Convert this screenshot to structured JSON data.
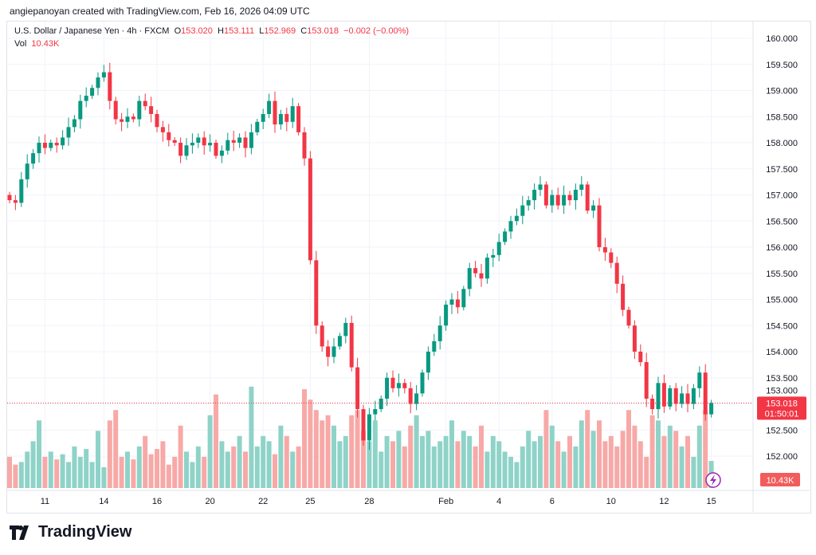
{
  "credit": "angiepanoyan created with TradingView.com, Feb 16, 2026 04:09 UTC",
  "legend": {
    "symbol": "U.S. Dollar / Japanese Yen · 4h · FXCM",
    "o_label": "O",
    "o": "153.020",
    "h_label": "H",
    "h": "153.111",
    "l_label": "L",
    "l": "152.969",
    "c_label": "C",
    "c": "153.018",
    "change": "−0.002 (−0.00%)",
    "vol_label": "Vol",
    "vol": "10.43K"
  },
  "price_badge": {
    "price": "153.018",
    "countdown": "01:50:01"
  },
  "volume_badge": "10.43K",
  "logo_text": "TradingView",
  "colors": {
    "up": "#089981",
    "down": "#f23645",
    "up_vol": "#8fd3c8",
    "down_vol": "#f7a9a7"
  },
  "chart_data": {
    "type": "candlestick",
    "title": "U.S. Dollar / Japanese Yen · 4h · FXCM",
    "ylim": [
      151.6,
      160.3
    ],
    "y_ticks": [
      "160.000",
      "159.500",
      "159.000",
      "158.500",
      "158.000",
      "157.500",
      "157.000",
      "156.500",
      "156.000",
      "155.500",
      "155.000",
      "154.500",
      "154.000",
      "153.500",
      "153.000",
      "152.500",
      "152.000"
    ],
    "x_ticks": [
      {
        "label": "11",
        "index": 6
      },
      {
        "label": "14",
        "index": 16
      },
      {
        "label": "16",
        "index": 25
      },
      {
        "label": "20",
        "index": 34
      },
      {
        "label": "22",
        "index": 43
      },
      {
        "label": "25",
        "index": 51
      },
      {
        "label": "28",
        "index": 61
      },
      {
        "label": "Feb",
        "index": 74
      },
      {
        "label": "4",
        "index": 83
      },
      {
        "label": "6",
        "index": 92
      },
      {
        "label": "10",
        "index": 102
      },
      {
        "label": "12",
        "index": 111
      },
      {
        "label": "15",
        "index": 119
      }
    ],
    "first_open": 157.0,
    "close": [
      156.9,
      156.85,
      157.3,
      157.6,
      157.8,
      158.0,
      157.9,
      158.0,
      157.95,
      158.1,
      158.3,
      158.45,
      158.8,
      158.9,
      159.05,
      159.25,
      159.35,
      158.8,
      158.45,
      158.4,
      158.5,
      158.45,
      158.8,
      158.7,
      158.55,
      158.3,
      158.2,
      158.05,
      158.0,
      157.75,
      157.95,
      158.0,
      158.1,
      157.95,
      158.0,
      157.75,
      157.85,
      158.05,
      158.0,
      158.1,
      157.9,
      158.2,
      158.4,
      158.55,
      158.8,
      158.35,
      158.55,
      158.4,
      158.7,
      158.2,
      157.7,
      155.75,
      154.5,
      154.1,
      153.9,
      154.1,
      154.3,
      154.55,
      153.7,
      152.9,
      152.3,
      152.8,
      152.9,
      153.1,
      153.5,
      153.3,
      153.4,
      153.3,
      153.0,
      153.2,
      153.6,
      154.0,
      154.2,
      154.5,
      154.9,
      155.0,
      154.85,
      155.2,
      155.6,
      155.5,
      155.4,
      155.8,
      155.85,
      156.1,
      156.3,
      156.5,
      156.6,
      156.8,
      156.9,
      157.1,
      157.2,
      156.8,
      157.0,
      156.8,
      157.0,
      156.9,
      157.1,
      157.2,
      156.7,
      156.8,
      156.0,
      155.9,
      155.7,
      155.3,
      154.8,
      154.5,
      154.0,
      153.8,
      153.1,
      152.9,
      153.4,
      152.95,
      153.3,
      153.0,
      153.2,
      153.0,
      153.3,
      153.6,
      152.8,
      153.018
    ],
    "volume_k": [
      12,
      9,
      10,
      14,
      18,
      26,
      12,
      14,
      11,
      13,
      10,
      16,
      12,
      15,
      10,
      22,
      8,
      26,
      30,
      12,
      14,
      11,
      16,
      20,
      13,
      15,
      18,
      9,
      12,
      24,
      14,
      10,
      16,
      12,
      28,
      36,
      18,
      14,
      16,
      20,
      14,
      39,
      16,
      20,
      18,
      13,
      24,
      20,
      14,
      16,
      38,
      34,
      30,
      26,
      28,
      24,
      18,
      20,
      28,
      30,
      22,
      18,
      26,
      14,
      20,
      18,
      22,
      16,
      24,
      28,
      20,
      22,
      16,
      18,
      20,
      26,
      18,
      22,
      20,
      16,
      24,
      14,
      20,
      18,
      14,
      12,
      10,
      16,
      22,
      18,
      20,
      30,
      24,
      18,
      14,
      20,
      16,
      26,
      30,
      22,
      26,
      18,
      20,
      16,
      22,
      30,
      24,
      18,
      12,
      28,
      26,
      20,
      24,
      22,
      16,
      20,
      12,
      24,
      30,
      10.43
    ]
  }
}
